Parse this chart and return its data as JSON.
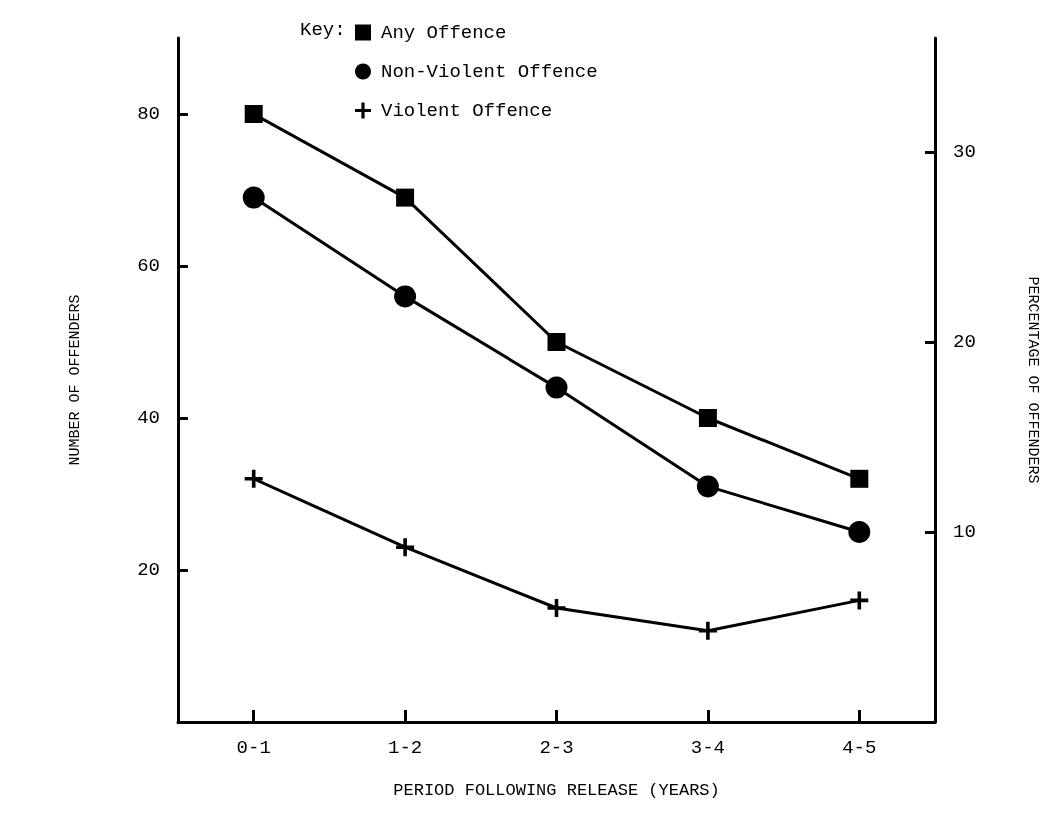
{
  "chart_data": {
    "type": "line",
    "xlabel": "PERIOD FOLLOWING RELEASE (YEARS)",
    "ylabel": "NUMBER OF OFFENDERS",
    "y2label": "PERCENTAGE OF OFFENDERS",
    "legend_title": "Key:",
    "categories": [
      "0-1",
      "1-2",
      "2-3",
      "3-4",
      "4-5"
    ],
    "series": [
      {
        "name": "Any Offence",
        "color": "#000000",
        "marker": "square",
        "values": [
          80,
          69,
          50,
          40,
          32
        ]
      },
      {
        "name": "Non-Violent Offence",
        "color": "#000000",
        "marker": "circle",
        "values": [
          69,
          56,
          44,
          31,
          25
        ]
      },
      {
        "name": "Violent Offence",
        "color": "#000000",
        "marker": "cross",
        "values": [
          32,
          23,
          15,
          12,
          16
        ]
      }
    ],
    "ylim": [
      0,
      90
    ],
    "yticks": [
      20,
      40,
      60,
      80
    ],
    "y2lim": [
      0,
      36
    ],
    "y2ticks": [
      10,
      20,
      30
    ],
    "grid": false,
    "legend": "top",
    "line_style": "solid"
  }
}
